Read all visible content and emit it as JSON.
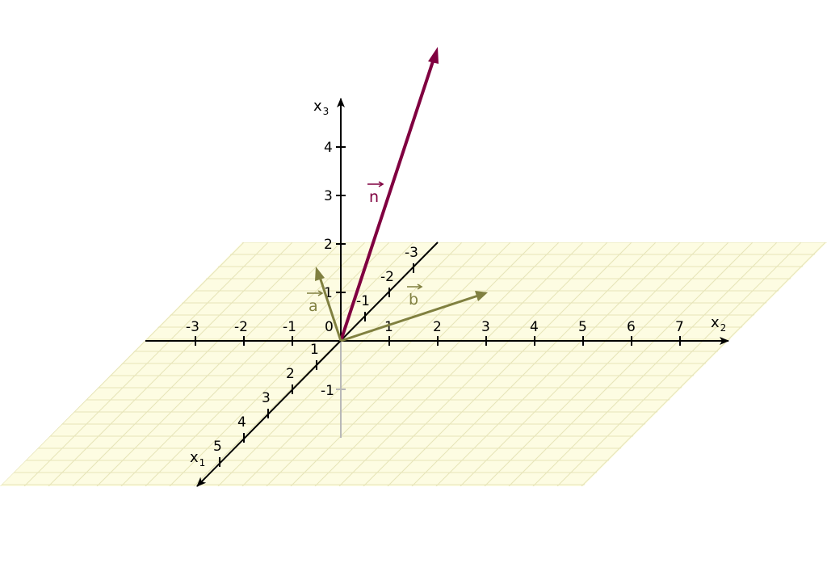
{
  "colors": {
    "plane_fill": "#fdfce2",
    "plane_grid": "#e6e4b8",
    "axis": "#000000",
    "negative_x3_axis": "#b8b8b8",
    "vector_n": "#800040",
    "vector_ab": "#808040"
  },
  "axes": {
    "x1": {
      "name": "x",
      "index": "1",
      "ticks": [
        "1",
        "2",
        "3",
        "4",
        "5"
      ]
    },
    "x2": {
      "name": "x",
      "index": "2",
      "ticks": [
        "-3",
        "-2",
        "-1",
        "1",
        "2",
        "3",
        "4",
        "5",
        "6",
        "7"
      ]
    },
    "x3": {
      "name": "x",
      "index": "3",
      "ticks": [
        "1",
        "2",
        "3",
        "4"
      ],
      "negative_tick": "-1"
    },
    "x1_negative_ticks": [
      "-1",
      "-2",
      "-3"
    ],
    "origin": "0"
  },
  "vectors": {
    "n": {
      "label": "n"
    },
    "a": {
      "label": "a"
    },
    "b": {
      "label": "b"
    }
  }
}
